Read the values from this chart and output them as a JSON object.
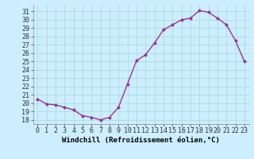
{
  "x": [
    0,
    1,
    2,
    3,
    4,
    5,
    6,
    7,
    8,
    9,
    10,
    11,
    12,
    13,
    14,
    15,
    16,
    17,
    18,
    19,
    20,
    21,
    22,
    23
  ],
  "y": [
    20.5,
    19.9,
    19.8,
    19.5,
    19.2,
    18.5,
    18.3,
    18.0,
    18.3,
    19.5,
    22.3,
    25.1,
    25.8,
    27.2,
    28.8,
    29.4,
    30.0,
    30.2,
    31.1,
    30.9,
    30.2,
    29.4,
    27.5,
    25.0
  ],
  "line_color": "#993399",
  "marker": "D",
  "marker_size": 2.0,
  "bg_color": "#cceeff",
  "grid_color": "#aadddd",
  "xlabel": "Windchill (Refroidissement éolien,°C)",
  "tick_fontsize": 6.0,
  "xlabel_fontsize": 6.5,
  "ylim": [
    17.5,
    31.8
  ],
  "yticks": [
    18,
    19,
    20,
    21,
    22,
    23,
    24,
    25,
    26,
    27,
    28,
    29,
    30,
    31
  ],
  "xticks": [
    0,
    1,
    2,
    3,
    4,
    5,
    6,
    7,
    8,
    9,
    10,
    11,
    12,
    13,
    14,
    15,
    16,
    17,
    18,
    19,
    20,
    21,
    22,
    23
  ]
}
